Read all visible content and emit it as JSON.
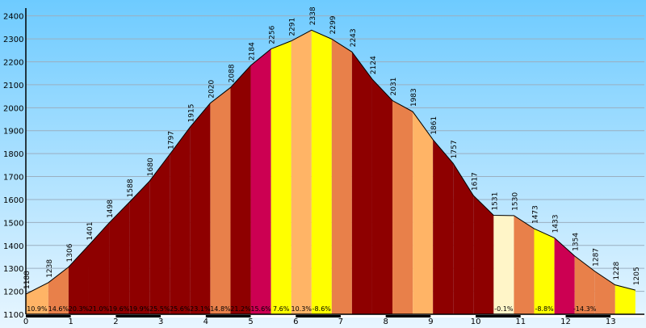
{
  "chart_data": {
    "type": "area",
    "y_ticks": [
      1100,
      1200,
      1300,
      1400,
      1500,
      1600,
      1700,
      1800,
      1900,
      2000,
      2100,
      2200,
      2300,
      2400
    ],
    "x_ticks": [
      0,
      1,
      2,
      3,
      4,
      5,
      6,
      7,
      8,
      9,
      10,
      11,
      12,
      13
    ],
    "ylim": [
      1100,
      2420
    ],
    "xlim": [
      0,
      13.75
    ],
    "grid": true,
    "points": [
      {
        "x": 0.0,
        "y": 1188,
        "label": "1188"
      },
      {
        "x": 0.5,
        "y": 1238,
        "label": "1238"
      },
      {
        "x": 0.95,
        "y": 1306,
        "label": "1306"
      },
      {
        "x": 1.4,
        "y": 1401,
        "label": "1401"
      },
      {
        "x": 1.85,
        "y": 1498,
        "label": "1498"
      },
      {
        "x": 2.3,
        "y": 1588,
        "label": "1588"
      },
      {
        "x": 2.75,
        "y": 1680,
        "label": "1680"
      },
      {
        "x": 3.2,
        "y": 1797,
        "label": "1797"
      },
      {
        "x": 3.65,
        "y": 1915,
        "label": "1915"
      },
      {
        "x": 4.1,
        "y": 2020,
        "label": "2020"
      },
      {
        "x": 4.55,
        "y": 2088,
        "label": "2088"
      },
      {
        "x": 5.0,
        "y": 2184,
        "label": "2184"
      },
      {
        "x": 5.45,
        "y": 2256,
        "label": "2256"
      },
      {
        "x": 5.9,
        "y": 2291,
        "label": "2291"
      },
      {
        "x": 6.35,
        "y": 2338,
        "label": "2338"
      },
      {
        "x": 6.8,
        "y": 2299,
        "label": "2299"
      },
      {
        "x": 7.25,
        "y": 2243,
        "label": "2243"
      },
      {
        "x": 7.7,
        "y": 2124,
        "label": "2124"
      },
      {
        "x": 8.15,
        "y": 2031,
        "label": "2031"
      },
      {
        "x": 8.6,
        "y": 1983,
        "label": "1983"
      },
      {
        "x": 9.05,
        "y": 1861,
        "label": "1861"
      },
      {
        "x": 9.5,
        "y": 1757,
        "label": "1757"
      },
      {
        "x": 9.95,
        "y": 1617,
        "label": "1617"
      },
      {
        "x": 10.4,
        "y": 1531,
        "label": "1531"
      },
      {
        "x": 10.85,
        "y": 1530,
        "label": "1530"
      },
      {
        "x": 11.3,
        "y": 1473,
        "label": "1473"
      },
      {
        "x": 11.75,
        "y": 1433,
        "label": "1433"
      },
      {
        "x": 12.2,
        "y": 1354,
        "label": "1354"
      },
      {
        "x": 12.65,
        "y": 1287,
        "label": "1287"
      },
      {
        "x": 13.1,
        "y": 1228,
        "label": "1228"
      },
      {
        "x": 13.55,
        "y": 1205,
        "label": "1205"
      }
    ],
    "segments": [
      {
        "grade": "10.9%",
        "color": "#FFB466"
      },
      {
        "grade": "14.6%",
        "color": "#E8804A"
      },
      {
        "grade": "20.3%",
        "color": "#8E0000"
      },
      {
        "grade": "21.0%",
        "color": "#8E0000"
      },
      {
        "grade": "19.6%",
        "color": "#8E0000"
      },
      {
        "grade": "19.9%",
        "color": "#8E0000"
      },
      {
        "grade": "25.5%",
        "color": "#8E0000"
      },
      {
        "grade": "25.6%",
        "color": "#8E0000"
      },
      {
        "grade": "23.1%",
        "color": "#8E0000"
      },
      {
        "grade": "14.8%",
        "color": "#E8804A"
      },
      {
        "grade": "21.2%",
        "color": "#8E0000"
      },
      {
        "grade": "15.6%",
        "color": "#CC0052"
      },
      {
        "grade": "7.6%",
        "color": "#FFFF00"
      },
      {
        "grade": "10.3%",
        "color": "#FFB466"
      },
      {
        "grade": "-8.6%",
        "color": "#FFFF00"
      },
      {
        "grade": "",
        "color": "#E8804A"
      },
      {
        "grade": "",
        "color": "#8E0000"
      },
      {
        "grade": "",
        "color": "#8E0000"
      },
      {
        "grade": "",
        "color": "#E8804A"
      },
      {
        "grade": "",
        "color": "#FFB466"
      },
      {
        "grade": "",
        "color": "#8E0000"
      },
      {
        "grade": "",
        "color": "#8E0000"
      },
      {
        "grade": "",
        "color": "#8E0000"
      },
      {
        "grade": "-0.1%",
        "color": "#FFF5C8"
      },
      {
        "grade": "",
        "color": "#E8804A"
      },
      {
        "grade": "-8.8%",
        "color": "#FFFF00"
      },
      {
        "grade": "",
        "color": "#CC0052"
      },
      {
        "grade": "-14.3%",
        "color": "#E8804A"
      },
      {
        "grade": "",
        "color": "#E8804A"
      },
      {
        "grade": "",
        "color": "#FFFF00"
      }
    ],
    "colors": {
      "background_top": "#6ECBFF",
      "background_bottom": "#E8F6FF",
      "grid": "#9AAFC0",
      "outline": "#000000",
      "axis": "#000000"
    }
  }
}
